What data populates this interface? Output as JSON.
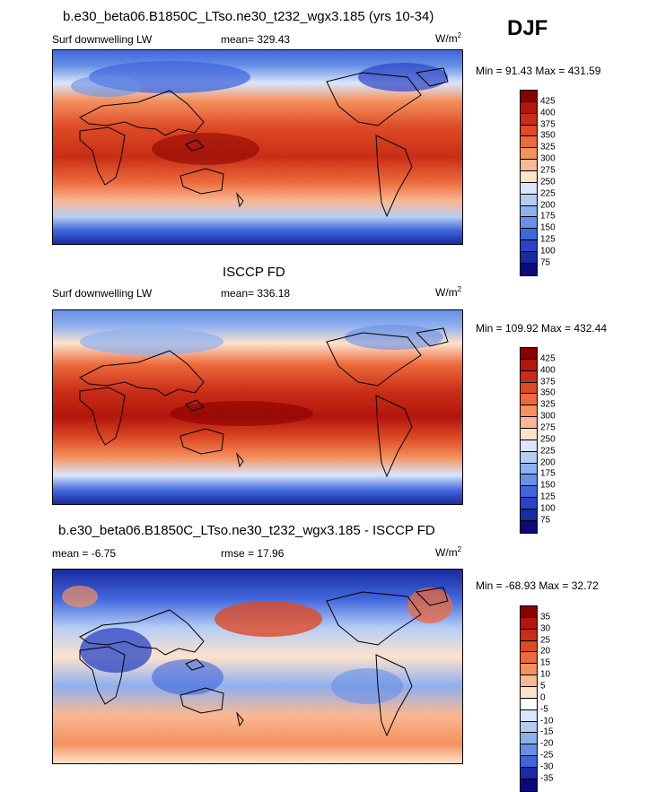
{
  "season": "DJF",
  "panels": [
    {
      "title": "b.e30_beta06.B1850C_LTso.ne30_t232_wgx3.185 (yrs 10-34)",
      "variable": "Surf downwelling LW",
      "stat_left": "",
      "stat_center": "mean= 329.43",
      "units": "W/m",
      "units_exp": "2",
      "minmax": "Min =  91.43 Max = 431.59",
      "levels": [
        "425",
        "400",
        "375",
        "350",
        "325",
        "300",
        "275",
        "250",
        "225",
        "200",
        "175",
        "150",
        "125",
        "100",
        "75"
      ],
      "colors": [
        "#8b0000",
        "#b2160c",
        "#c92d16",
        "#dd4a25",
        "#ec6a3c",
        "#f4915f",
        "#f9b894",
        "#fde2cc",
        "#dbe6fa",
        "#b5cdf5",
        "#8eb0ef",
        "#6790e6",
        "#4066dc",
        "#2a44c6",
        "#1a2aa0",
        "#0a0a78"
      ]
    },
    {
      "title": "ISCCP FD",
      "variable": "Surf downwelling LW",
      "stat_left": "",
      "stat_center": "mean= 336.18",
      "units": "W/m",
      "units_exp": "2",
      "minmax": "Min = 109.92 Max = 432.44",
      "levels": [
        "425",
        "400",
        "375",
        "350",
        "325",
        "300",
        "275",
        "250",
        "225",
        "200",
        "175",
        "150",
        "125",
        "100",
        "75"
      ],
      "colors": [
        "#8b0000",
        "#b2160c",
        "#c92d16",
        "#dd4a25",
        "#ec6a3c",
        "#f4915f",
        "#f9b894",
        "#fde2cc",
        "#dbe6fa",
        "#b5cdf5",
        "#8eb0ef",
        "#6790e6",
        "#4066dc",
        "#2a44c6",
        "#1a2aa0",
        "#0a0a78"
      ]
    },
    {
      "title": "b.e30_beta06.B1850C_LTso.ne30_t232_wgx3.185 - ISCCP FD",
      "variable": "",
      "stat_left": "mean =  -6.75",
      "stat_center": "rmse =  17.96",
      "units": "W/m",
      "units_exp": "2",
      "minmax": "Min = -68.93 Max =  32.72",
      "levels": [
        "35",
        "30",
        "25",
        "20",
        "15",
        "10",
        "5",
        "0",
        "-5",
        "-10",
        "-15",
        "-20",
        "-25",
        "-30",
        "-35"
      ],
      "colors": [
        "#8b0000",
        "#b2160c",
        "#c92d16",
        "#dd4a25",
        "#ec6a3c",
        "#f4915f",
        "#f9b894",
        "#fde2cc",
        "#ffffff",
        "#dbe6fa",
        "#b5cdf5",
        "#8eb0ef",
        "#6790e6",
        "#4066dc",
        "#1a2aa0",
        "#0a0a78"
      ]
    }
  ]
}
